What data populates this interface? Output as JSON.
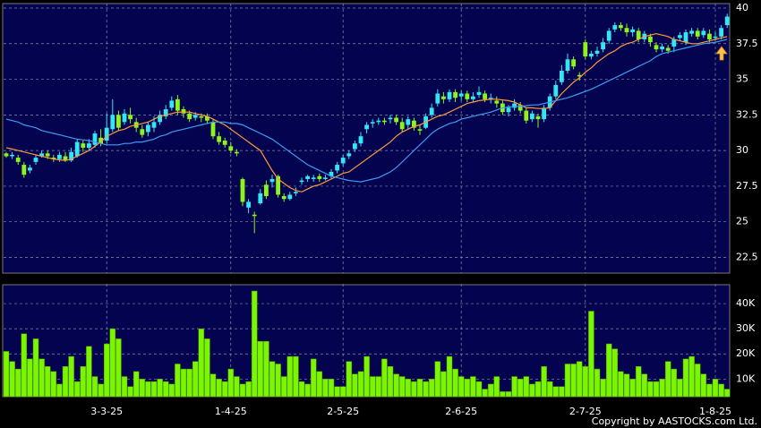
{
  "chart_data": [
    {
      "type": "candlestick",
      "up_color": "#33e6f2",
      "down_color": "#8cf51e",
      "ylim": [
        21.4,
        40.25
      ],
      "yticks": [
        22.5,
        25,
        27.5,
        30,
        32.5,
        35,
        37.5,
        40
      ],
      "grid": true,
      "open": [
        29.8,
        29.6,
        29.5,
        29.0,
        28.6,
        29.2,
        29.6,
        29.8,
        29.5,
        29.4,
        29.6,
        29.3,
        29.6,
        30.5,
        30.2,
        30.4,
        30.9,
        30.7,
        31.5,
        32.5,
        32.0,
        32.5,
        32.0,
        31.5,
        31.3,
        31.6,
        32.0,
        32.4,
        33.0,
        33.6,
        32.9,
        32.6,
        32.3,
        32.4,
        32.4,
        32.0,
        31.0,
        30.7,
        30.3,
        29.9,
        28.0,
        26.0,
        25.5,
        26.3,
        27.6,
        27.8,
        28.2,
        26.8,
        26.6,
        27.0,
        27.8,
        28.0,
        28.0,
        28.2,
        28.0,
        28.2,
        28.6,
        29.1,
        29.6,
        30.1,
        30.5,
        31.5,
        31.9,
        32.0,
        32.1,
        32.2,
        32.3,
        32.0,
        31.8,
        32.1,
        31.5,
        31.6,
        32.5,
        33.3,
        33.8,
        33.6,
        34.1,
        33.8,
        34.0,
        33.6,
        33.9,
        34.0,
        33.6,
        33.5,
        33.3,
        32.7,
        33.0,
        33.2,
        32.8,
        32.2,
        32.4,
        32.2,
        33.0,
        33.8,
        34.8,
        35.6,
        36.4,
        35.3,
        37.6,
        36.6,
        36.8,
        37.1,
        37.7,
        38.5,
        38.8,
        38.6,
        38.3,
        38.4,
        37.8,
        38.0,
        37.4,
        37.1,
        37.2,
        37.3,
        37.9,
        37.6,
        38.2,
        38.4,
        38.1,
        38.2,
        37.9,
        38.0,
        38.8
      ],
      "high": [
        29.9,
        29.9,
        29.7,
        29.2,
        29.0,
        29.7,
        30.0,
        30.0,
        29.7,
        29.9,
        29.9,
        30.2,
        30.8,
        30.7,
        30.8,
        31.4,
        31.5,
        32.6,
        33.6,
        32.8,
        32.9,
        33.0,
        32.3,
        31.8,
        32.0,
        32.4,
        32.8,
        33.2,
        33.8,
        33.9,
        33.1,
        32.8,
        32.7,
        32.6,
        32.6,
        32.2,
        31.3,
        30.9,
        30.6,
        30.1,
        28.1,
        26.6,
        25.7,
        27.3,
        27.9,
        28.3,
        28.3,
        27.0,
        27.1,
        27.4,
        28.1,
        28.3,
        28.3,
        28.4,
        28.3,
        28.7,
        29.2,
        29.7,
        30.0,
        30.7,
        31.3,
        32.0,
        32.2,
        32.3,
        32.3,
        32.5,
        32.5,
        32.3,
        32.4,
        32.3,
        31.8,
        32.6,
        33.3,
        34.3,
        34.1,
        34.3,
        34.3,
        34.2,
        34.2,
        34.1,
        34.5,
        34.2,
        34.0,
        33.8,
        33.5,
        33.2,
        33.6,
        33.4,
        33.0,
        32.8,
        32.6,
        33.2,
        34.0,
        34.9,
        36.0,
        36.8,
        36.6,
        35.5,
        37.8,
        37.0,
        37.3,
        37.9,
        38.6,
        39.0,
        39.0,
        38.9,
        38.7,
        38.6,
        38.4,
        38.2,
        37.6,
        37.5,
        37.4,
        38.0,
        38.3,
        38.5,
        38.6,
        38.6,
        38.6,
        38.5,
        38.3,
        38.8,
        39.6
      ],
      "low": [
        29.5,
        29.4,
        29.0,
        28.1,
        28.4,
        29.0,
        29.5,
        29.4,
        29.2,
        29.2,
        29.2,
        29.2,
        29.5,
        29.9,
        30.0,
        30.2,
        30.3,
        30.5,
        31.3,
        31.4,
        31.8,
        31.9,
        31.3,
        30.9,
        31.0,
        31.3,
        31.8,
        32.2,
        32.8,
        32.5,
        32.3,
        32.0,
        32.1,
        32.0,
        31.9,
        30.8,
        30.4,
        30.2,
        29.8,
        29.6,
        26.1,
        25.6,
        24.2,
        26.2,
        26.6,
        27.4,
        26.7,
        26.4,
        26.5,
        26.8,
        27.6,
        27.8,
        27.8,
        27.8,
        27.9,
        28.0,
        28.4,
        28.9,
        29.4,
        29.9,
        30.3,
        31.2,
        31.6,
        31.8,
        31.8,
        31.9,
        31.8,
        31.3,
        31.5,
        31.4,
        31.1,
        31.5,
        32.3,
        33.1,
        33.3,
        33.4,
        33.4,
        33.5,
        33.4,
        33.4,
        33.7,
        33.4,
        33.3,
        33.0,
        32.5,
        32.4,
        32.8,
        32.6,
        31.9,
        32.0,
        31.6,
        32.0,
        32.8,
        33.6,
        34.6,
        35.4,
        35.7,
        34.9,
        36.4,
        36.4,
        36.6,
        36.9,
        37.5,
        38.3,
        38.4,
        38.0,
        38.0,
        37.6,
        37.6,
        37.3,
        36.9,
        36.9,
        36.8,
        36.9,
        37.7,
        37.4,
        38.0,
        37.8,
        37.9,
        37.6,
        37.7,
        37.8,
        38.6
      ],
      "close": [
        29.6,
        29.7,
        29.2,
        28.3,
        28.8,
        29.5,
        29.8,
        29.6,
        29.4,
        29.7,
        29.3,
        29.9,
        30.6,
        30.2,
        30.5,
        31.2,
        30.5,
        31.6,
        32.5,
        31.6,
        32.6,
        32.2,
        31.6,
        31.1,
        31.8,
        32.0,
        32.5,
        32.9,
        33.5,
        32.8,
        32.6,
        32.2,
        32.5,
        32.3,
        32.1,
        31.0,
        30.6,
        30.4,
        30.0,
        29.8,
        26.4,
        26.4,
        25.4,
        27.0,
        26.8,
        28.0,
        26.9,
        26.6,
        26.9,
        27.1,
        27.9,
        28.2,
        28.1,
        28.0,
        28.1,
        28.5,
        29.0,
        29.5,
        29.8,
        30.5,
        31.0,
        31.8,
        32.0,
        32.1,
        32.0,
        32.3,
        32.0,
        31.5,
        32.2,
        31.6,
        31.4,
        32.4,
        33.0,
        34.0,
        33.6,
        34.1,
        33.7,
        34.0,
        33.6,
        33.8,
        34.1,
        33.6,
        33.7,
        33.3,
        32.7,
        33.0,
        33.3,
        32.8,
        32.1,
        32.6,
        32.2,
        33.0,
        33.8,
        34.6,
        35.6,
        36.4,
        35.9,
        35.2,
        36.6,
        36.8,
        37.0,
        37.6,
        38.4,
        38.8,
        38.6,
        38.3,
        38.5,
        37.8,
        38.2,
        37.6,
        37.1,
        37.3,
        37.0,
        37.8,
        38.1,
        38.3,
        38.4,
        38.0,
        38.4,
        37.8,
        38.0,
        38.6,
        39.4
      ],
      "series": [
        {
          "color": "#ff9a3c",
          "values": [
            30.2,
            30.1,
            30.0,
            29.9,
            29.8,
            29.7,
            29.6,
            29.5,
            29.4,
            29.35,
            29.3,
            29.4,
            29.6,
            29.8,
            30.0,
            30.3,
            30.6,
            31.0,
            31.2,
            31.4,
            31.5,
            31.7,
            31.8,
            31.9,
            32.0,
            32.2,
            32.4,
            32.5,
            32.6,
            32.7,
            32.7,
            32.7,
            32.6,
            32.5,
            32.4,
            32.2,
            32.0,
            31.8,
            31.5,
            31.2,
            30.9,
            30.6,
            30.3,
            30.0,
            29.3,
            28.6,
            28.0,
            27.7,
            27.4,
            27.2,
            27.1,
            27.3,
            27.5,
            27.6,
            27.8,
            28.0,
            28.2,
            28.4,
            28.5,
            28.8,
            29.1,
            29.4,
            29.7,
            30.0,
            30.3,
            30.6,
            31.0,
            31.3,
            31.5,
            31.7,
            31.8,
            32.0,
            32.2,
            32.4,
            32.5,
            32.7,
            32.9,
            33.1,
            33.3,
            33.4,
            33.5,
            33.55,
            33.6,
            33.6,
            33.55,
            33.5,
            33.4,
            33.2,
            33.0,
            33.0,
            32.95,
            32.95,
            33.0,
            33.5,
            34.0,
            34.4,
            34.8,
            35.1,
            35.5,
            35.8,
            36.2,
            36.5,
            36.8,
            37.0,
            37.3,
            37.5,
            37.6,
            37.8,
            38.0,
            38.1,
            38.2,
            38.1,
            38.0,
            37.8,
            37.7,
            37.6,
            37.5,
            37.5,
            37.6,
            37.7,
            37.8,
            37.9,
            38.0
          ]
        },
        {
          "color": "#3f9cf0",
          "values": [
            32.2,
            32.1,
            32.0,
            31.8,
            31.7,
            31.6,
            31.4,
            31.3,
            31.2,
            31.1,
            31.0,
            30.9,
            30.8,
            30.75,
            30.7,
            30.6,
            30.5,
            30.4,
            30.4,
            30.4,
            30.5,
            30.5,
            30.6,
            30.6,
            30.7,
            30.8,
            31.0,
            31.1,
            31.3,
            31.4,
            31.5,
            31.6,
            31.7,
            31.8,
            31.9,
            32.0,
            32.0,
            32.0,
            31.9,
            31.9,
            31.8,
            31.6,
            31.4,
            31.2,
            31.0,
            30.8,
            30.5,
            30.2,
            29.9,
            29.6,
            29.3,
            29.0,
            28.8,
            28.6,
            28.4,
            28.2,
            28.1,
            28.0,
            27.9,
            27.85,
            27.8,
            27.9,
            28.0,
            28.1,
            28.3,
            28.5,
            28.8,
            29.2,
            29.6,
            30.0,
            30.4,
            30.8,
            31.2,
            31.5,
            31.7,
            31.9,
            32.0,
            32.2,
            32.3,
            32.4,
            32.5,
            32.6,
            32.7,
            32.85,
            33.0,
            33.05,
            33.1,
            33.1,
            33.15,
            33.2,
            33.2,
            33.3,
            33.4,
            33.5,
            33.6,
            33.7,
            33.85,
            34.0,
            34.15,
            34.3,
            34.5,
            34.7,
            34.9,
            35.1,
            35.3,
            35.5,
            35.7,
            35.9,
            36.1,
            36.3,
            36.6,
            36.8,
            36.9,
            37.0,
            37.1,
            37.2,
            37.3,
            37.4,
            37.5,
            37.55,
            37.6,
            37.7,
            37.8
          ]
        }
      ]
    },
    {
      "type": "bar",
      "color": "#7cf500",
      "credit": "Copyright by AASTOCKS.com Ltd.",
      "ylim": [
        3000,
        47500
      ],
      "yticks": [
        {
          "value": 10000,
          "label": "10K"
        },
        {
          "value": 20000,
          "label": "20K"
        },
        {
          "value": 30000,
          "label": "30K"
        },
        {
          "value": 40000,
          "label": "40K"
        }
      ],
      "categories": [
        null,
        null,
        null,
        null,
        null,
        null,
        null,
        null,
        null,
        null,
        null,
        null,
        null,
        null,
        null,
        null,
        null,
        "3-3-25",
        null,
        null,
        null,
        null,
        null,
        null,
        null,
        null,
        null,
        null,
        null,
        null,
        null,
        null,
        null,
        null,
        null,
        null,
        null,
        null,
        "1-4-25",
        null,
        null,
        null,
        null,
        null,
        null,
        null,
        null,
        null,
        null,
        null,
        null,
        null,
        null,
        null,
        null,
        null,
        null,
        "2-5-25",
        null,
        null,
        null,
        null,
        null,
        null,
        null,
        null,
        null,
        null,
        null,
        null,
        null,
        null,
        null,
        null,
        null,
        null,
        null,
        "2-6-25",
        null,
        null,
        null,
        null,
        null,
        null,
        null,
        null,
        null,
        null,
        null,
        null,
        null,
        null,
        null,
        null,
        null,
        null,
        null,
        null,
        "2-7-25",
        null,
        null,
        null,
        null,
        null,
        null,
        null,
        null,
        null,
        null,
        null,
        null,
        null,
        null,
        null,
        null,
        null,
        null,
        null,
        null,
        null,
        "1-8-25",
        null,
        null
      ],
      "values": [
        21000,
        17000,
        14000,
        28000,
        18000,
        26000,
        18000,
        15000,
        13000,
        8000,
        15000,
        19000,
        9000,
        15000,
        23000,
        11000,
        8000,
        24000,
        30000,
        26000,
        11000,
        7000,
        13000,
        10000,
        9000,
        9000,
        10000,
        9000,
        8000,
        16000,
        14000,
        14000,
        17000,
        30000,
        26000,
        12000,
        10000,
        9000,
        14000,
        11000,
        8000,
        9000,
        45000,
        25000,
        25000,
        17000,
        16000,
        11000,
        19000,
        19000,
        9000,
        8000,
        18000,
        13000,
        10000,
        10000,
        7000,
        7000,
        17000,
        12000,
        13000,
        19000,
        11000,
        11000,
        18000,
        15000,
        12000,
        11000,
        10000,
        9000,
        10000,
        9000,
        10000,
        17000,
        13000,
        19000,
        14000,
        11000,
        10000,
        11000,
        9000,
        6000,
        8000,
        11000,
        5000,
        5000,
        11000,
        10000,
        11000,
        8000,
        9000,
        15000,
        9000,
        7000,
        7000,
        16000,
        16000,
        17000,
        15000,
        37000,
        14000,
        10000,
        24000,
        22000,
        13000,
        12000,
        10000,
        15000,
        12000,
        9000,
        9000,
        10000,
        17000,
        14000,
        10000,
        18000,
        19000,
        16000,
        12000,
        8000,
        10000,
        8000,
        6000
      ]
    }
  ]
}
